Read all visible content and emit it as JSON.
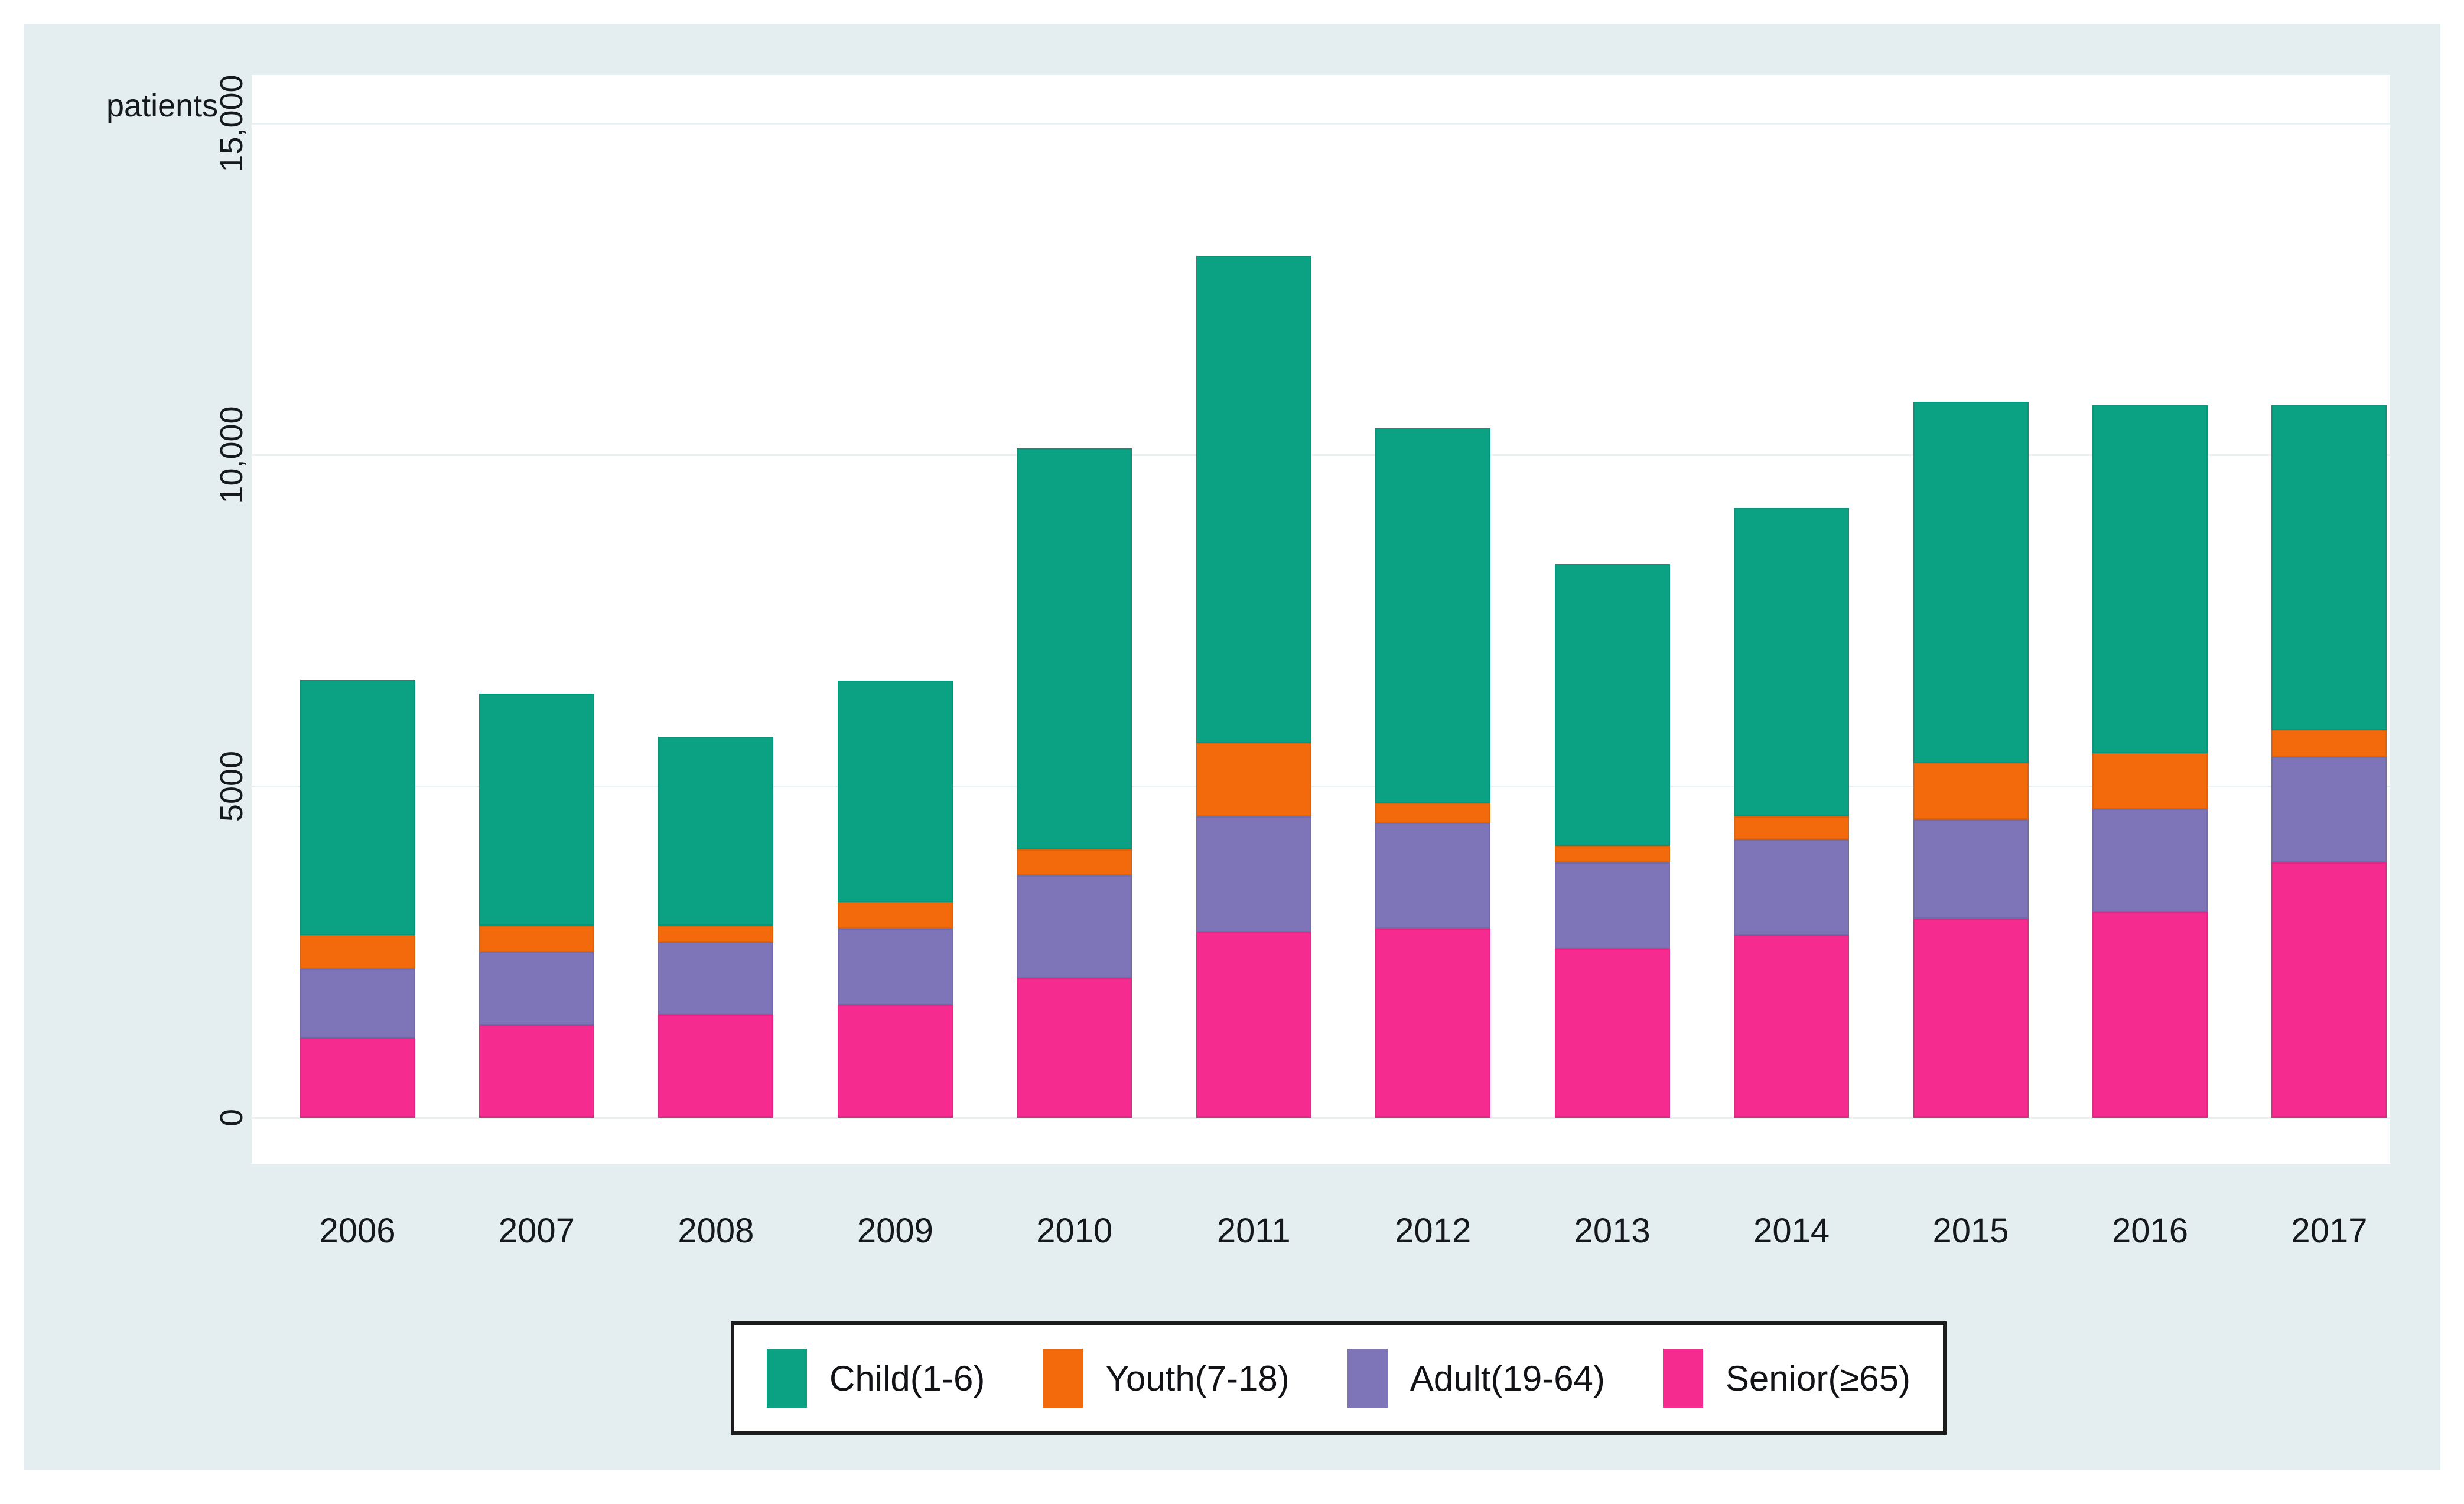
{
  "chart_data": {
    "type": "bar",
    "subtype": "stacked-vertical",
    "title": "",
    "ylabel": "patients",
    "xlabel": "",
    "categories": [
      "2006",
      "2007",
      "2008",
      "2009",
      "2010",
      "2011",
      "2012",
      "2013",
      "2014",
      "2015",
      "2016",
      "2017"
    ],
    "series": [
      {
        "name": "Child(1-6)",
        "color": "#0ba183",
        "values": [
          3850,
          3500,
          2850,
          3350,
          6050,
          7350,
          5650,
          4250,
          4650,
          5450,
          5250,
          4900
        ]
      },
      {
        "name": "Youth(7-18)",
        "color": "#f26a0c",
        "values": [
          500,
          400,
          250,
          400,
          400,
          1100,
          300,
          250,
          350,
          850,
          850,
          400
        ]
      },
      {
        "name": "Adult(19-64)",
        "color": "#7e74b8",
        "values": [
          1050,
          1100,
          1100,
          1150,
          1550,
          1750,
          1600,
          1300,
          1450,
          1500,
          1550,
          1600
        ]
      },
      {
        "name": "Senior(≥65)",
        "color": "#f52b8f",
        "values": [
          1200,
          1400,
          1550,
          1700,
          2100,
          2800,
          2850,
          2550,
          2750,
          3000,
          3100,
          3850
        ]
      }
    ],
    "totals": [
      6600,
      6400,
      5750,
      6600,
      10100,
      13000,
      10400,
      8350,
      9200,
      10800,
      10750,
      10750
    ],
    "stack_order_bottom_to_top": [
      "Senior(≥65)",
      "Adult(19-64)",
      "Youth(7-18)",
      "Child(1-6)"
    ],
    "ylim": [
      0,
      15700
    ],
    "yticks": [
      {
        "value": 0,
        "label": "0"
      },
      {
        "value": 5000,
        "label": "5000"
      },
      {
        "value": 10000,
        "label": "10,000"
      },
      {
        "value": 15000,
        "label": "15,000"
      }
    ],
    "grid": "horizontal",
    "tick_label_rotation": "y-labels rotated 90deg",
    "legend_position": "bottom-center"
  },
  "colors": {
    "panel_background": "#e4eef0",
    "plot_background": "#ffffff",
    "gridline": "#e9f1f2",
    "text": "#15181d",
    "legend_border": "#1c1c1c"
  },
  "legend": {
    "items": [
      "Child(1-6)",
      "Youth(7-18)",
      "Adult(19-64)",
      "Senior(≥65)"
    ]
  }
}
